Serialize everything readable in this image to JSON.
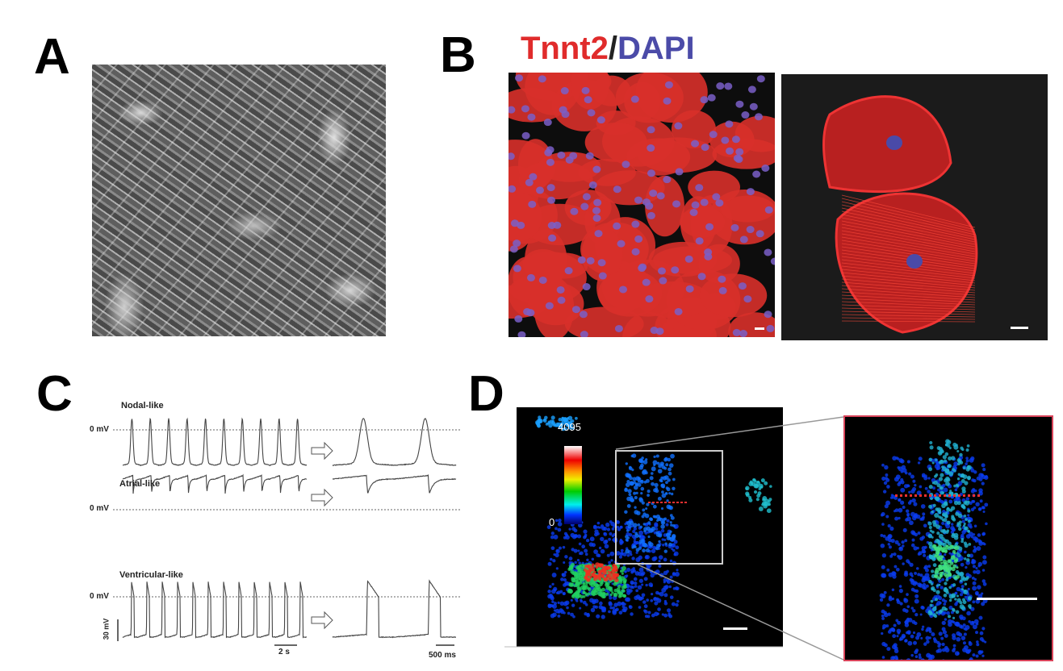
{
  "panels": {
    "a": {
      "label": "A"
    },
    "b": {
      "label": "B",
      "title_red": "Tnnt2",
      "title_sep": "/",
      "title_blue": "DAPI"
    },
    "c": {
      "label": "C",
      "traces": [
        {
          "name": "Nodal-like",
          "zero_label": "0 mV"
        },
        {
          "name": "Atrial-like",
          "zero_label": "0 mV"
        },
        {
          "name": "Ventricular-like",
          "zero_label": "0 mV"
        }
      ],
      "scale_voltage": "30 mV",
      "scale_time_left": "2 s",
      "scale_time_right": "500 ms",
      "arrow_icon": "right-arrow-icon"
    },
    "d": {
      "label": "D",
      "colorbar_max": "4095",
      "colorbar_min": "0"
    }
  },
  "colors": {
    "tnnt2": "#e02b2b",
    "dapi": "#4b4ba8",
    "inset_border": "#d9445a"
  }
}
